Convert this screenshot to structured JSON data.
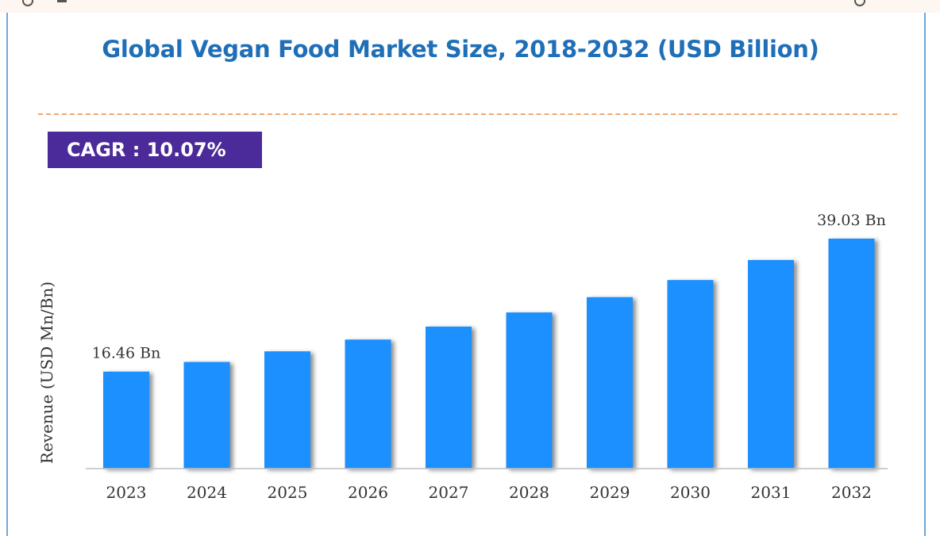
{
  "header": {
    "title": "Global Vegan Food Market Size, 2018-2032 (USD Billion)",
    "cagr_label": "CAGR :",
    "cagr_value": "10.07%"
  },
  "colors": {
    "title": "#1f6fb8",
    "bar": "#1e90ff",
    "bar_shadow": "#9aa3ad",
    "cagr_bg": "#4b2a9a",
    "divider": "#f2a66e"
  },
  "chart_data": {
    "type": "bar",
    "title": "Global Vegan Food Market Size, 2018-2032 (USD Billion)",
    "xlabel": "",
    "ylabel": "Revenue (USD Mn/Bn)",
    "categories": [
      "2023",
      "2024",
      "2025",
      "2026",
      "2027",
      "2028",
      "2029",
      "2030",
      "2031",
      "2032"
    ],
    "values": [
      16.46,
      18.1,
      19.9,
      21.9,
      24.1,
      26.5,
      29.1,
      32.0,
      35.4,
      39.03
    ],
    "data_labels": [
      {
        "category": "2023",
        "text": "16.46 Bn"
      },
      {
        "category": "2032",
        "text": "39.03 Bn"
      }
    ],
    "ylim": [
      0,
      44
    ],
    "grid": false,
    "legend": "none"
  }
}
